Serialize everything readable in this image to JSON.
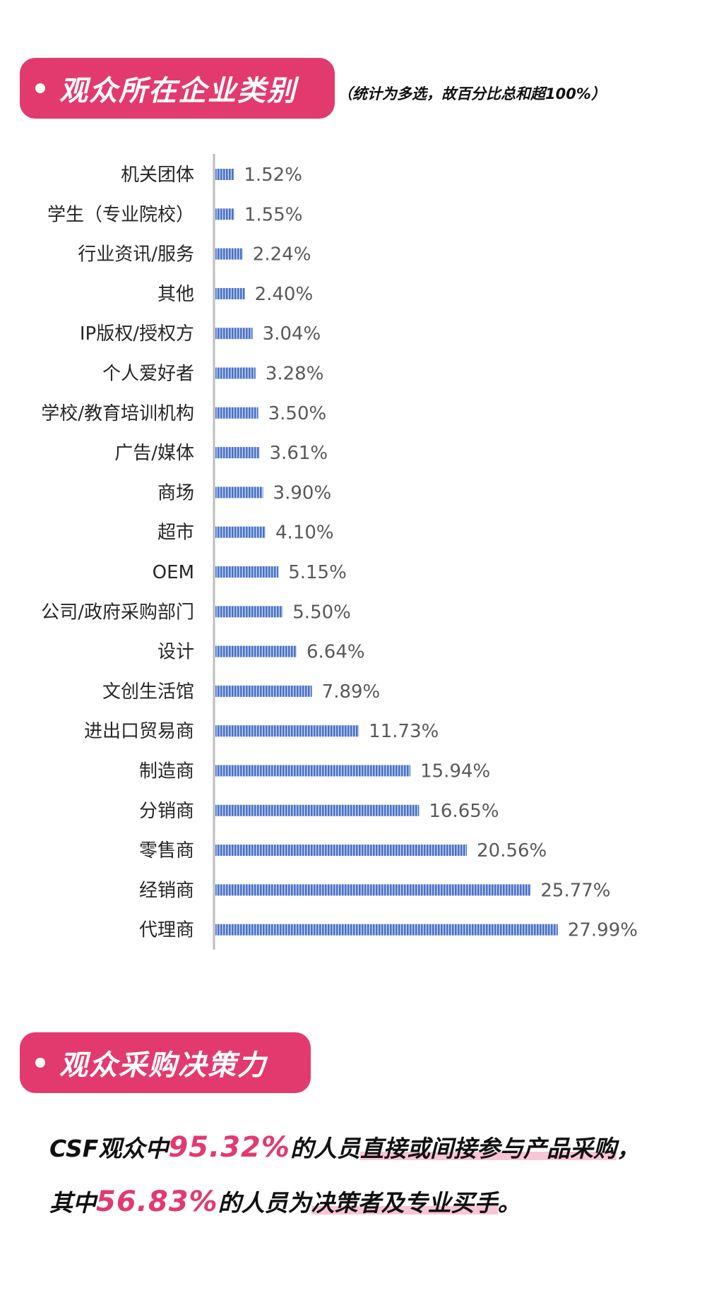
{
  "section1": {
    "title": "观众所在企业类别",
    "subtitle": "（统计为多选，故百分比总和超100%）"
  },
  "section2": {
    "title": "观众采购决策力"
  },
  "statement": {
    "line1_prefix": "CSF观众中",
    "line1_highlight": "95.32%",
    "line1_mid": "的人员",
    "line1_underlined": "直接或间接参与产品采购",
    "line1_end": "，",
    "line2_prefix": "其中",
    "line2_highlight": "56.83%",
    "line2_mid": "的人员为",
    "line2_underlined": "决策者及专业买手",
    "line2_end": "。"
  },
  "colors": {
    "accent": "#e23a6e",
    "bar": "#4a72c4",
    "bar_stripe": "#c9d6f0",
    "axis": "#bdbdbd",
    "underline": "#f7c6d6"
  },
  "chart_data": {
    "type": "bar",
    "orientation": "horizontal",
    "categories": [
      "机关团体",
      "学生（专业院校）",
      "行业资讯/服务",
      "其他",
      "IP版权/授权方",
      "个人爱好者",
      "学校/教育培训机构",
      "广告/媒体",
      "商场",
      "超市",
      "OEM",
      "公司/政府采购部门",
      "设计",
      "文创生活馆",
      "进出口贸易商",
      "制造商",
      "分销商",
      "零售商",
      "经销商",
      "代理商"
    ],
    "values": [
      1.52,
      1.55,
      2.24,
      2.4,
      3.04,
      3.28,
      3.5,
      3.61,
      3.9,
      4.1,
      5.15,
      5.5,
      6.64,
      7.89,
      11.73,
      15.94,
      16.65,
      20.56,
      25.77,
      27.99
    ],
    "data_labels": [
      "1.52%",
      "1.55%",
      "2.24%",
      "2.40%",
      "3.04%",
      "3.28%",
      "3.50%",
      "3.61%",
      "3.90%",
      "4.10%",
      "5.15%",
      "5.50%",
      "6.64%",
      "7.89%",
      "11.73%",
      "15.94%",
      "16.65%",
      "20.56%",
      "25.77%",
      "27.99%"
    ],
    "unit": "%",
    "xlim": [
      0,
      28
    ],
    "grid": false,
    "legend": "none"
  }
}
